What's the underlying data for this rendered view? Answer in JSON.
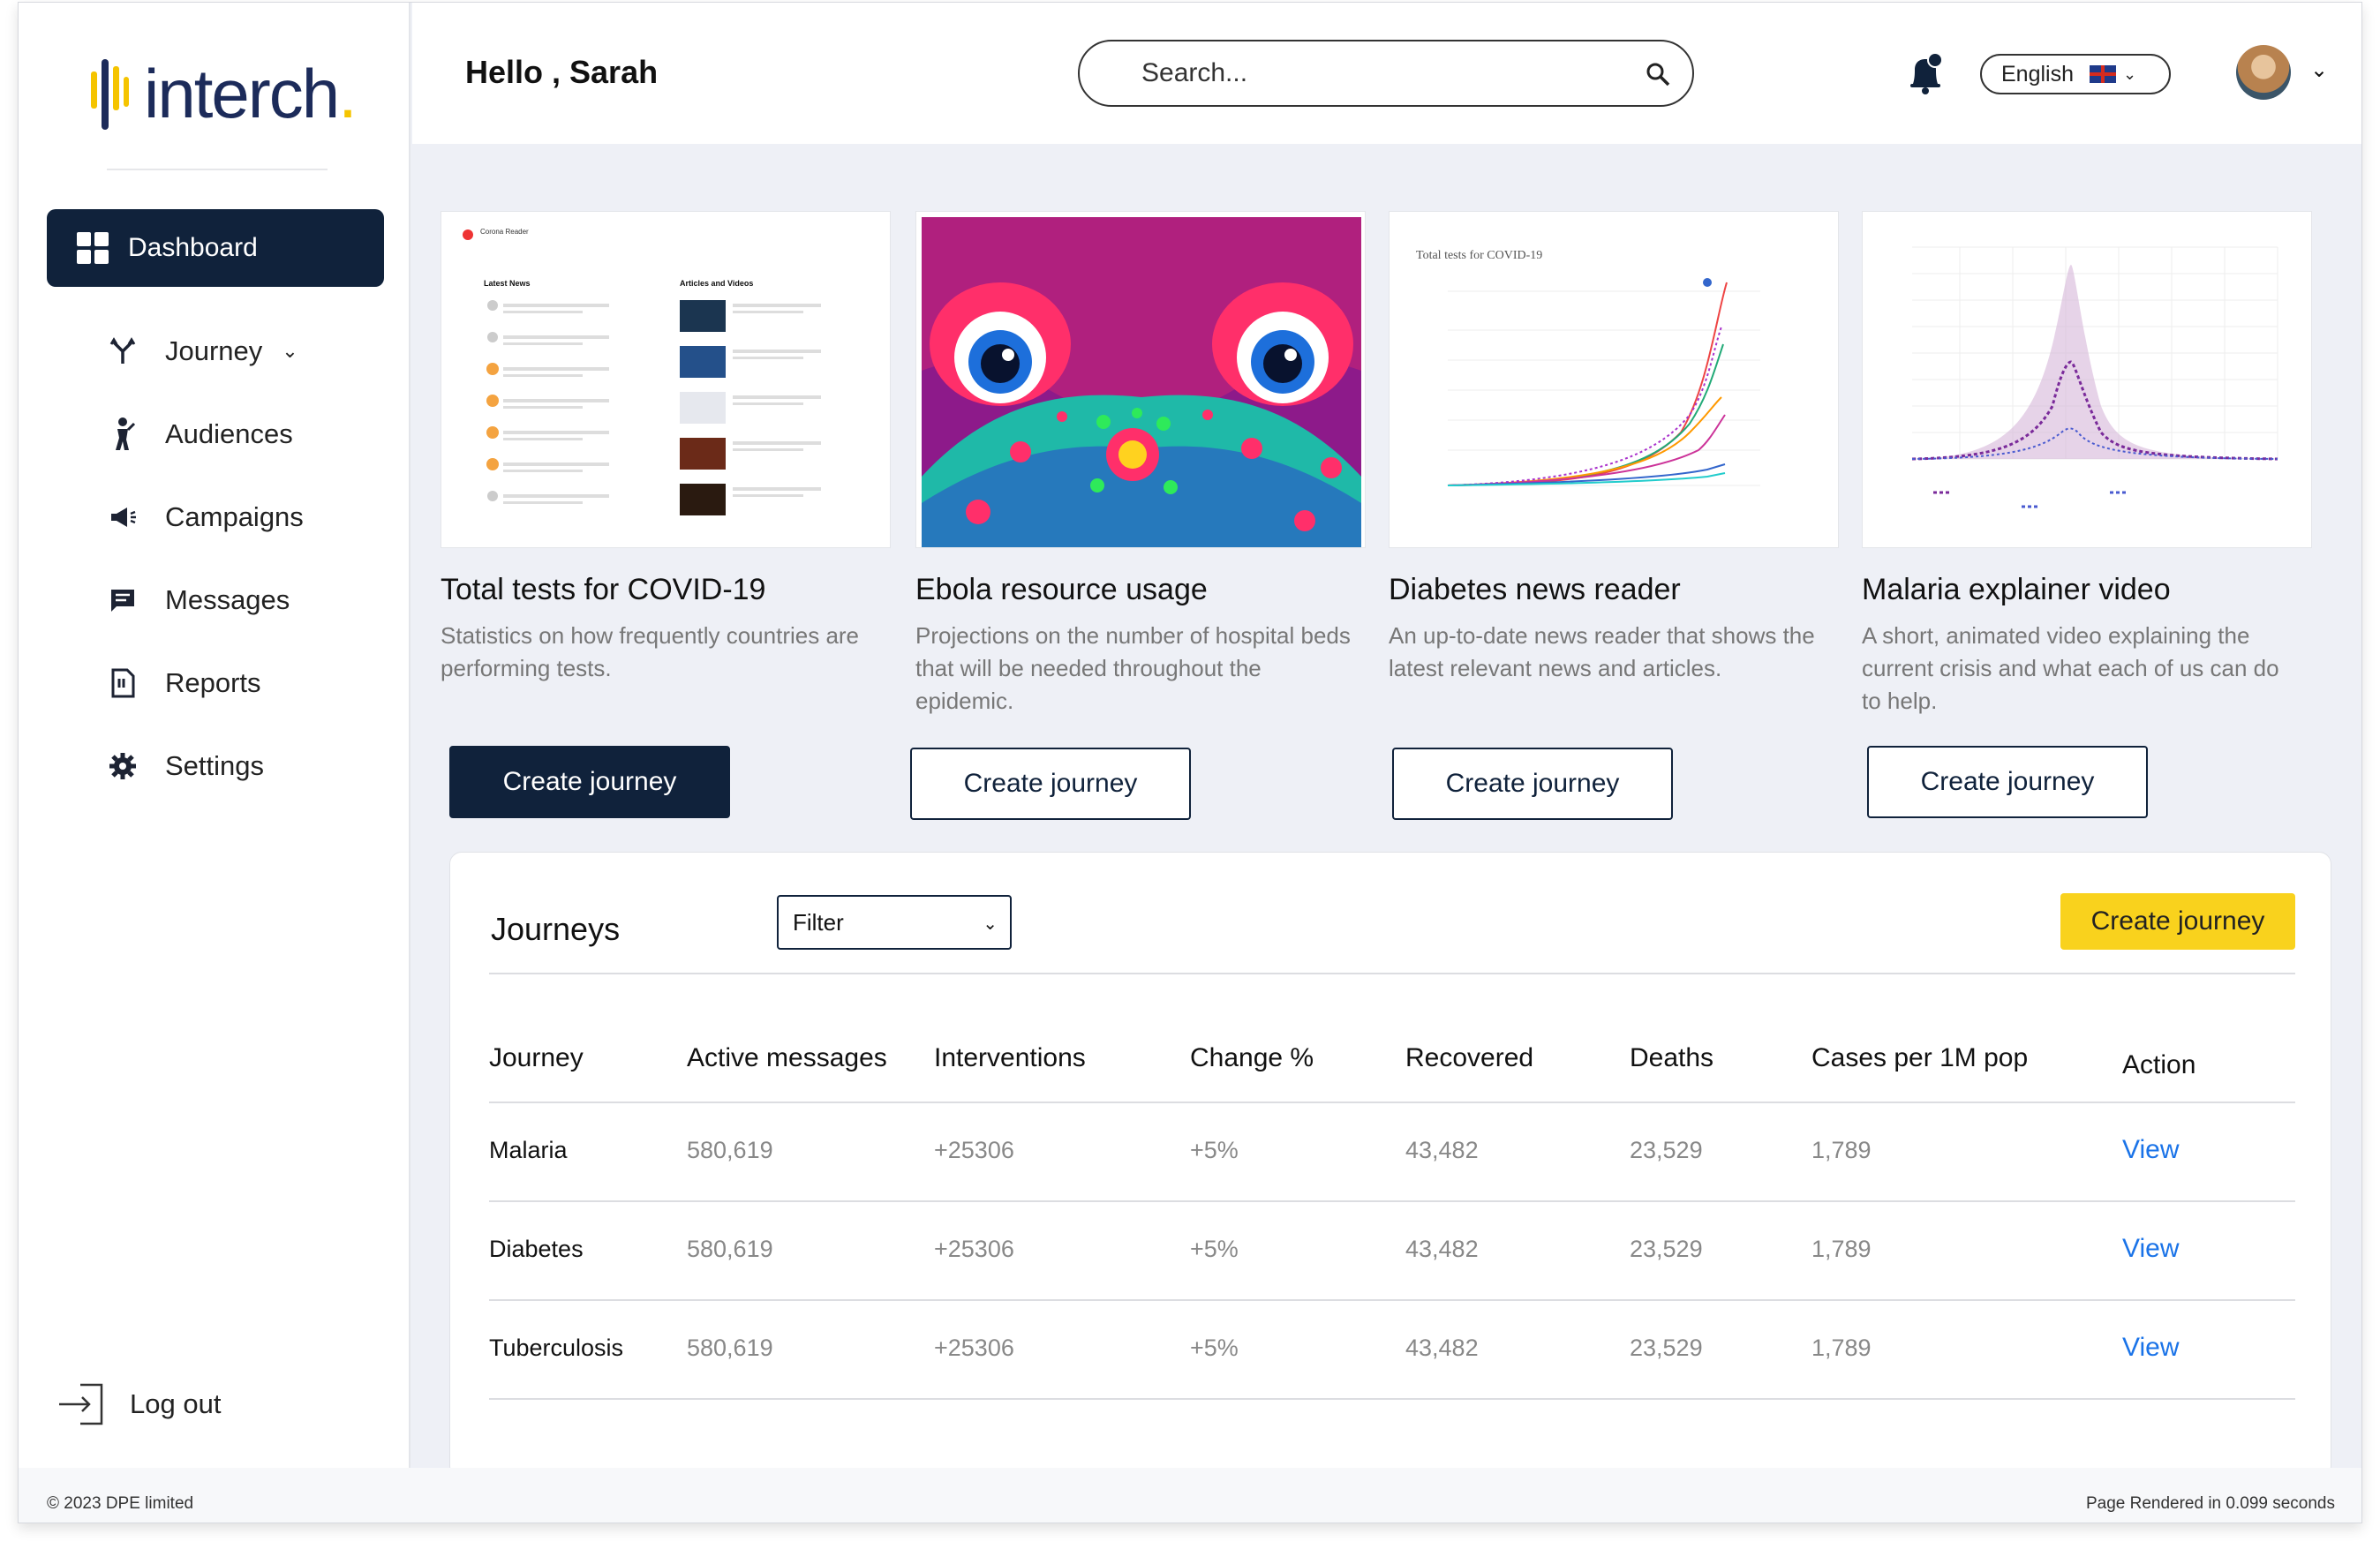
{
  "brand": {
    "name": "interch",
    "dot": "."
  },
  "sidebar": {
    "active": "Dashboard",
    "items": [
      {
        "label": "Journey",
        "icon": "route-icon"
      },
      {
        "label": "Audiences",
        "icon": "person-icon"
      },
      {
        "label": "Campaigns",
        "icon": "megaphone-icon"
      },
      {
        "label": "Messages",
        "icon": "message-icon"
      },
      {
        "label": "Reports",
        "icon": "report-icon"
      },
      {
        "label": "Settings",
        "icon": "gear-icon"
      }
    ],
    "logout": "Log out"
  },
  "header": {
    "greeting": "Hello , Sarah",
    "search_placeholder": "Search...",
    "language": "English"
  },
  "cards": [
    {
      "title": "Total tests for COVID-19",
      "desc": "Statistics on how frequently countries are performing tests.",
      "button": "Create journey"
    },
    {
      "title": "Ebola resource usage",
      "desc": "Projections on the number of hospital beds that will be needed throughout the epidemic.",
      "button": "Create journey"
    },
    {
      "title": "Diabetes  news reader",
      "desc": "An up-to-date news reader that shows the latest relevant news and articles.",
      "button": "Create journey"
    },
    {
      "title": "Malaria explainer video",
      "desc": "A short, animated video explaining the current crisis and what each of us can do to help.",
      "button": "Create journey"
    }
  ],
  "thumbs": {
    "covid_title": "Total tests for COVID-19",
    "news_header": "Corona Reader",
    "latest_news": "Latest News",
    "articles": "Articles and Videos"
  },
  "journeys": {
    "title": "Journeys",
    "filter": "Filter",
    "create": "Create journey",
    "columns": [
      "Journey",
      "Active messages",
      "Interventions",
      "Change %",
      "Recovered",
      "Deaths",
      "Cases per 1M pop",
      "Action"
    ],
    "rows": [
      {
        "journey": "Malaria",
        "active": "580,619",
        "interventions": "+25306",
        "change": "+5%",
        "recovered": "43,482",
        "deaths": "23,529",
        "cases": "1,789",
        "action": "View"
      },
      {
        "journey": "Diabetes",
        "active": "580,619",
        "interventions": "+25306",
        "change": "+5%",
        "recovered": "43,482",
        "deaths": "23,529",
        "cases": "1,789",
        "action": "View"
      },
      {
        "journey": "Tuberculosis",
        "active": "580,619",
        "interventions": "+25306",
        "change": "+5%",
        "recovered": "43,482",
        "deaths": "23,529",
        "cases": "1,789",
        "action": "View"
      }
    ]
  },
  "footer": {
    "copyright": "© 2023 DPE limited",
    "render": "Page Rendered in 0.099 seconds"
  },
  "colors": {
    "navy": "#10223b",
    "yellow": "#f9d21d",
    "link": "#1a73e8"
  }
}
